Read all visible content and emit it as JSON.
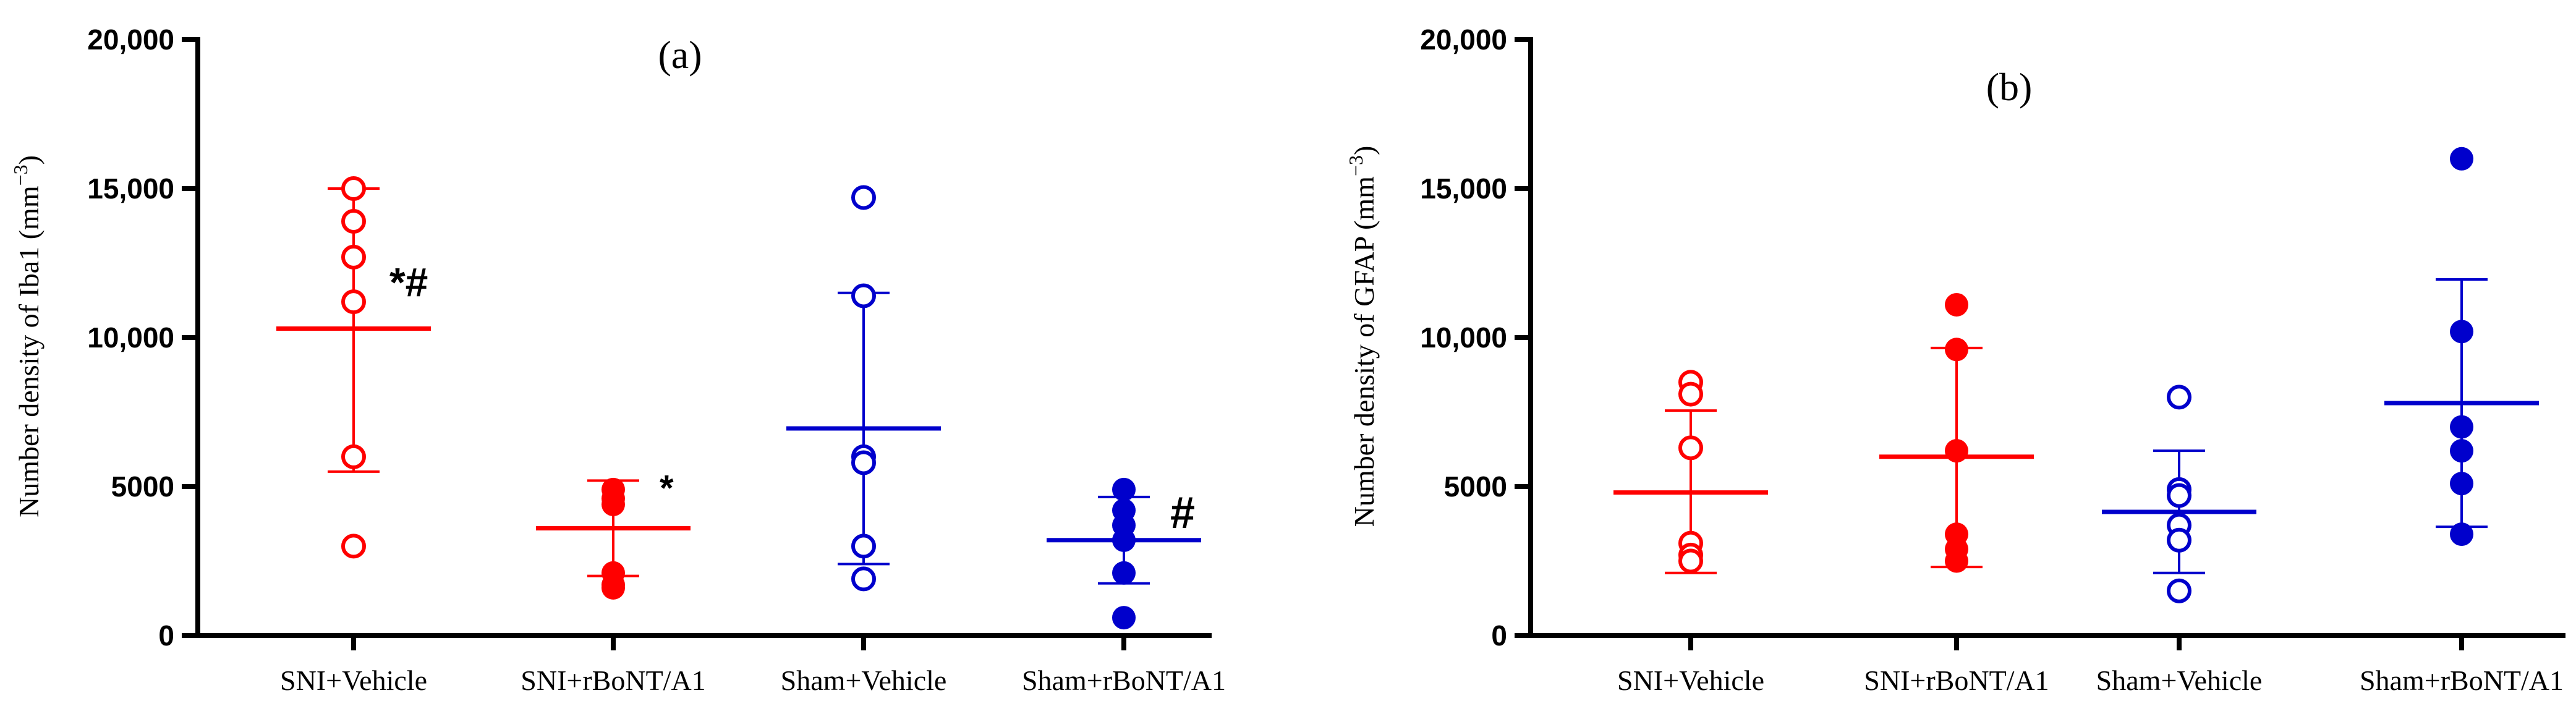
{
  "chart_data": [
    {
      "type": "scatter",
      "title": "(a)",
      "ylabel": {
        "main": "Number density of Iba1 (mm",
        "sup": "−3",
        "end": ")"
      },
      "ylim": [
        0,
        20000
      ],
      "yticks": [
        0,
        5000,
        10000,
        15000,
        20000
      ],
      "ytick_labels": [
        "0",
        "5000",
        "10,000",
        "15,000",
        "20,000"
      ],
      "categories": [
        "SNI+Vehicle",
        "SNI+rBoNT/A1",
        "Sham+Vehicle",
        "Sham+rBoNT/A1"
      ],
      "series": [
        {
          "category": "SNI+Vehicle",
          "color": "#ff0000",
          "marker": "open",
          "points": [
            15000,
            13900,
            12700,
            11200,
            6000,
            3000
          ],
          "mean": 10300,
          "err_low": 5500,
          "err_high": 15000,
          "annotation": "*#"
        },
        {
          "category": "SNI+rBoNT/A1",
          "color": "#ff0000",
          "marker": "filled",
          "points": [
            4900,
            4600,
            4400,
            2100,
            1700,
            1600
          ],
          "mean": 3600,
          "err_low": 2000,
          "err_high": 5200,
          "annotation": "*"
        },
        {
          "category": "Sham+Vehicle",
          "color": "#0000cc",
          "marker": "open",
          "points": [
            14700,
            11400,
            6000,
            5800,
            3000,
            1900
          ],
          "mean": 6950,
          "err_low": 2400,
          "err_high": 11500,
          "annotation": ""
        },
        {
          "category": "Sham+rBoNT/A1",
          "color": "#0000cc",
          "marker": "filled",
          "points": [
            4900,
            4200,
            3700,
            3200,
            2100,
            600
          ],
          "mean": 3200,
          "err_low": 1750,
          "err_high": 4650,
          "annotation": "#"
        }
      ]
    },
    {
      "type": "scatter",
      "title": "(b)",
      "ylabel": {
        "main": "Number density of GFAP (mm",
        "sup": "−3",
        "end": ")"
      },
      "ylim": [
        0,
        20000
      ],
      "yticks": [
        0,
        5000,
        10000,
        15000,
        20000
      ],
      "ytick_labels": [
        "0",
        "5000",
        "10,000",
        "15,000",
        "20,000"
      ],
      "categories": [
        "SNI+Vehicle",
        "SNI+rBoNT/A1",
        "Sham+Vehicle",
        "Sham+rBoNT/A1"
      ],
      "series": [
        {
          "category": "SNI+Vehicle",
          "color": "#ff0000",
          "marker": "open",
          "points": [
            8500,
            8100,
            6300,
            3100,
            2700,
            2500
          ],
          "mean": 4800,
          "err_low": 2100,
          "err_high": 7550,
          "annotation": ""
        },
        {
          "category": "SNI+rBoNT/A1",
          "color": "#ff0000",
          "marker": "filled",
          "points": [
            11100,
            9600,
            6200,
            3400,
            2900,
            2500
          ],
          "mean": 6000,
          "err_low": 2300,
          "err_high": 9650,
          "annotation": ""
        },
        {
          "category": "Sham+Vehicle",
          "color": "#0000cc",
          "marker": "open",
          "points": [
            8000,
            4900,
            4700,
            3700,
            3200,
            1500
          ],
          "mean": 4150,
          "err_low": 2100,
          "err_high": 6200,
          "annotation": ""
        },
        {
          "category": "Sham+rBoNT/A1",
          "color": "#0000cc",
          "marker": "filled",
          "points": [
            16000,
            10200,
            7000,
            6200,
            5100,
            3400
          ],
          "mean": 7800,
          "err_low": 3650,
          "err_high": 11950,
          "annotation": ""
        }
      ]
    }
  ]
}
